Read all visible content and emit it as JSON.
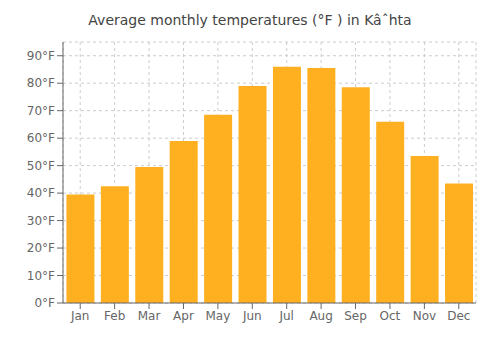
{
  "chart_data": {
    "type": "bar",
    "title": "Average monthly temperatures (°F ) in Kâˆhta",
    "categories": [
      "Jan",
      "Feb",
      "Mar",
      "Apr",
      "May",
      "Jun",
      "Jul",
      "Aug",
      "Sep",
      "Oct",
      "Nov",
      "Dec"
    ],
    "values": [
      39.5,
      42.5,
      49.5,
      59.0,
      68.5,
      79.0,
      86.0,
      85.5,
      78.5,
      66.0,
      53.5,
      43.5
    ],
    "color": "#FFB020",
    "ylim": [
      0,
      95
    ],
    "yticks": [
      {
        "value": 0,
        "label": "0°F"
      },
      {
        "value": 10,
        "label": "10°F"
      },
      {
        "value": 20,
        "label": "20°F"
      },
      {
        "value": 30,
        "label": "30°F"
      },
      {
        "value": 40,
        "label": "40°F"
      },
      {
        "value": 50,
        "label": "50°F"
      },
      {
        "value": 60,
        "label": "60°F"
      },
      {
        "value": 70,
        "label": "70°F"
      },
      {
        "value": 80,
        "label": "80°F"
      },
      {
        "value": 90,
        "label": "90°F"
      }
    ],
    "grid": true
  }
}
